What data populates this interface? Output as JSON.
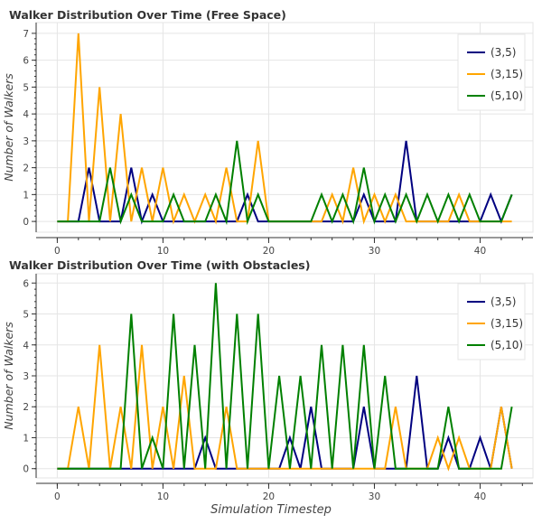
{
  "chart_data": [
    {
      "type": "line",
      "title": "Walker Distribution Over Time (Free Space)",
      "xlabel": "",
      "ylabel": "Number of Walkers",
      "xlim": [
        -2,
        45
      ],
      "ylim": [
        -0.4,
        7.4
      ],
      "xticks": [
        0,
        10,
        20,
        30,
        40
      ],
      "yticks": [
        0,
        1,
        2,
        3,
        4,
        5,
        6,
        7
      ],
      "grid": true,
      "legend_position": "top-right",
      "x": [
        0,
        1,
        2,
        3,
        4,
        5,
        6,
        7,
        8,
        9,
        10,
        11,
        12,
        13,
        14,
        15,
        16,
        17,
        18,
        19,
        20,
        21,
        22,
        23,
        24,
        25,
        26,
        27,
        28,
        29,
        30,
        31,
        32,
        33,
        34,
        35,
        36,
        37,
        38,
        39,
        40,
        41,
        42,
        43
      ],
      "series": [
        {
          "name": "(3,5)",
          "color": "#000080",
          "values": [
            0,
            0,
            0,
            2,
            0,
            0,
            0,
            2,
            0,
            1,
            0,
            0,
            0,
            0,
            0,
            0,
            0,
            0,
            1,
            0,
            0,
            0,
            0,
            0,
            0,
            0,
            0,
            0,
            0,
            1,
            0,
            0,
            0,
            3,
            0,
            0,
            0,
            0,
            0,
            0,
            0,
            1,
            0,
            1
          ]
        },
        {
          "name": "(3,15)",
          "color": "#ffa500",
          "values": [
            0,
            0,
            7,
            0,
            5,
            0,
            4,
            0,
            2,
            0,
            2,
            0,
            1,
            0,
            1,
            0,
            2,
            0,
            0,
            3,
            0,
            0,
            0,
            0,
            0,
            0,
            1,
            0,
            2,
            0,
            1,
            0,
            1,
            0,
            0,
            0,
            0,
            0,
            1,
            0,
            0,
            0,
            0,
            0
          ]
        },
        {
          "name": "(5,10)",
          "color": "#008000",
          "values": [
            0,
            0,
            0,
            0,
            0,
            2,
            0,
            1,
            0,
            0,
            0,
            1,
            0,
            0,
            0,
            1,
            0,
            3,
            0,
            1,
            0,
            0,
            0,
            0,
            0,
            1,
            0,
            1,
            0,
            2,
            0,
            1,
            0,
            1,
            0,
            1,
            0,
            1,
            0,
            1,
            0,
            0,
            0,
            1
          ]
        }
      ]
    },
    {
      "type": "line",
      "title": "Walker Distribution Over Time (with Obstacles)",
      "xlabel": "Simulation Timestep",
      "ylabel": "Number of Walkers",
      "xlim": [
        -2,
        45
      ],
      "ylim": [
        -0.3,
        6.3
      ],
      "xticks": [
        0,
        10,
        20,
        30,
        40
      ],
      "yticks": [
        0,
        1,
        2,
        3,
        4,
        5,
        6
      ],
      "grid": true,
      "legend_position": "top-right",
      "x": [
        0,
        1,
        2,
        3,
        4,
        5,
        6,
        7,
        8,
        9,
        10,
        11,
        12,
        13,
        14,
        15,
        16,
        17,
        18,
        19,
        20,
        21,
        22,
        23,
        24,
        25,
        26,
        27,
        28,
        29,
        30,
        31,
        32,
        33,
        34,
        35,
        36,
        37,
        38,
        39,
        40,
        41,
        42,
        43
      ],
      "series": [
        {
          "name": "(3,5)",
          "color": "#000080",
          "values": [
            0,
            0,
            0,
            0,
            0,
            0,
            0,
            0,
            0,
            0,
            0,
            0,
            0,
            0,
            1,
            0,
            0,
            0,
            0,
            0,
            0,
            0,
            1,
            0,
            2,
            0,
            0,
            0,
            0,
            2,
            0,
            0,
            0,
            0,
            3,
            0,
            0,
            1,
            0,
            0,
            1,
            0,
            2,
            0
          ]
        },
        {
          "name": "(3,15)",
          "color": "#ffa500",
          "values": [
            0,
            0,
            2,
            0,
            4,
            0,
            2,
            0,
            4,
            0,
            2,
            0,
            3,
            0,
            0,
            0,
            2,
            0,
            0,
            0,
            0,
            0,
            0,
            0,
            0,
            0,
            0,
            0,
            0,
            0,
            0,
            0,
            2,
            0,
            0,
            0,
            1,
            0,
            1,
            0,
            0,
            0,
            2,
            0
          ]
        },
        {
          "name": "(5,10)",
          "color": "#008000",
          "values": [
            0,
            0,
            0,
            0,
            0,
            0,
            0,
            5,
            0,
            1,
            0,
            5,
            0,
            4,
            0,
            6,
            0,
            5,
            0,
            5,
            0,
            3,
            0,
            3,
            0,
            4,
            0,
            4,
            0,
            4,
            0,
            3,
            0,
            0,
            0,
            0,
            0,
            2,
            0,
            0,
            0,
            0,
            0,
            2
          ]
        }
      ]
    }
  ]
}
